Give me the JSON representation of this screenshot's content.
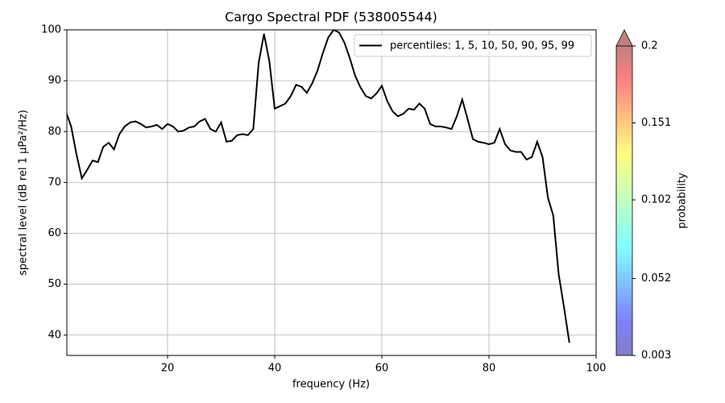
{
  "chart_data": {
    "type": "line",
    "title": "Cargo Spectral PDF (538005544)",
    "x_label": "frequency (Hz)",
    "y_label": "spectral level (dB rel 1 µPa²/Hz)",
    "x": [
      1,
      2,
      3,
      4,
      5,
      6,
      7,
      8,
      9,
      10,
      11,
      12,
      13,
      14,
      15,
      16,
      17,
      18,
      19,
      20,
      21,
      22,
      23,
      24,
      25,
      26,
      27,
      28,
      29,
      30,
      31,
      32,
      33,
      34,
      35,
      36,
      37,
      38,
      39,
      40,
      41,
      42,
      43,
      44,
      45,
      46,
      47,
      48,
      49,
      50,
      51,
      52,
      53,
      54,
      55,
      56,
      57,
      58,
      59,
      60,
      61,
      62,
      63,
      64,
      65,
      66,
      67,
      68,
      69,
      70,
      71,
      72,
      73,
      74,
      75,
      76,
      77,
      78,
      79,
      80,
      81,
      82,
      83,
      84,
      85,
      86,
      87,
      88,
      89,
      90,
      91,
      92,
      93,
      94,
      95
    ],
    "series": [
      {
        "name": "percentiles: 1, 5, 10, 50, 90, 95, 99",
        "color": "#000000",
        "values": [
          84,
          81,
          75.5,
          70.8,
          72.5,
          74.3,
          74,
          77,
          77.8,
          76.5,
          79.5,
          81,
          81.8,
          82,
          81.5,
          80.8,
          81,
          81.3,
          80.5,
          81.5,
          81,
          80,
          80.2,
          80.8,
          81,
          82,
          82.5,
          80.5,
          80,
          81.8,
          78,
          78.2,
          79.3,
          79.5,
          79.3,
          80.5,
          93.5,
          99.2,
          93.8,
          84.5,
          85,
          85.5,
          87,
          89.2,
          88.8,
          87.6,
          89.5,
          92,
          95.5,
          98.5,
          100,
          99.5,
          97.5,
          94.5,
          91,
          88.7,
          87,
          86.5,
          87.5,
          89,
          86,
          84,
          83,
          83.5,
          84.5,
          84.3,
          85.5,
          84.5,
          81.5,
          81,
          81,
          80.8,
          80.5,
          83,
          86.3,
          82.5,
          78.5,
          78,
          77.8,
          77.5,
          77.8,
          80.5,
          77.5,
          76.3,
          76,
          76,
          74.5,
          75,
          78,
          75,
          67,
          63.5,
          52,
          45.5,
          38.5
        ]
      }
    ],
    "xlim": [
      1.2,
      100
    ],
    "ylim": [
      36,
      100
    ],
    "xticks": [
      20,
      40,
      60,
      80,
      100
    ],
    "yticks": [
      40,
      50,
      60,
      70,
      80,
      90,
      100
    ],
    "grid": true,
    "legend": "upper right",
    "colorbar": {
      "label": "probability",
      "colormap": "jet",
      "lim": [
        0.003,
        0.2
      ],
      "ticks": [
        0.003,
        0.052,
        0.102,
        0.151,
        0.2
      ]
    }
  }
}
